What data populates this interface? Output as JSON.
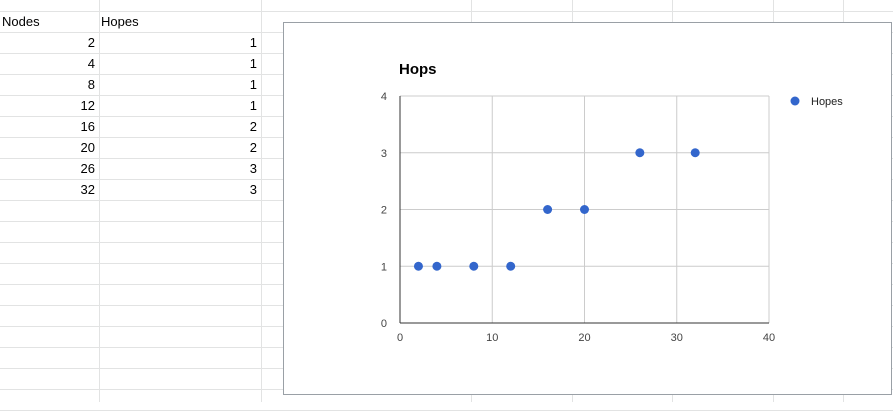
{
  "sheet": {
    "headers": [
      "Nodes",
      "Hopes"
    ],
    "rows": [
      [
        "2",
        "1"
      ],
      [
        "4",
        "1"
      ],
      [
        "8",
        "1"
      ],
      [
        "12",
        "1"
      ],
      [
        "16",
        "2"
      ],
      [
        "20",
        "2"
      ],
      [
        "26",
        "3"
      ],
      [
        "32",
        "3"
      ]
    ]
  },
  "chart_data": {
    "type": "scatter",
    "title": "Hops",
    "xlabel": "",
    "ylabel": "",
    "xlim": [
      0,
      40
    ],
    "ylim": [
      0,
      4
    ],
    "xticks": [
      "0",
      "10",
      "20",
      "30",
      "40"
    ],
    "yticks": [
      "0",
      "1",
      "2",
      "3",
      "4"
    ],
    "grid": true,
    "legend_position": "right",
    "series": [
      {
        "name": "Hopes",
        "color": "#3366cc",
        "points": [
          [
            2,
            1
          ],
          [
            4,
            1
          ],
          [
            8,
            1
          ],
          [
            12,
            1
          ],
          [
            16,
            2
          ],
          [
            20,
            2
          ],
          [
            26,
            3
          ],
          [
            32,
            3
          ]
        ]
      }
    ]
  }
}
